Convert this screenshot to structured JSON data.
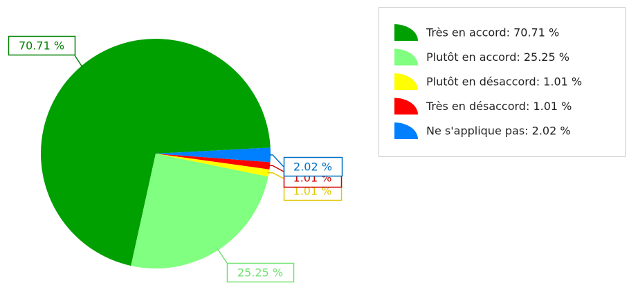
{
  "chart_data": {
    "type": "pie",
    "categories": [
      "Très en accord",
      "Plutôt en accord",
      "Plutôt en désaccord",
      "Très en désaccord",
      "Ne s'applique pas"
    ],
    "values": [
      70.71,
      25.25,
      1.01,
      1.01,
      2.02
    ],
    "value_labels": [
      "70.71 %",
      "25.25 %",
      "1.01 %",
      "1.01 %",
      "2.02 %"
    ],
    "legend": [
      "Très en accord: 70.71 %",
      "Plutôt en accord: 25.25 %",
      "Plutôt en désaccord: 1.01 %",
      "Très en désaccord: 1.01 %",
      "Ne s'applique pas: 2.02 %"
    ],
    "colors": [
      "#00a000",
      "#80ff80",
      "#ffff00",
      "#ff0000",
      "#0080ff"
    ],
    "label_colors": [
      "#008000",
      "#6fe36f",
      "#e0c800",
      "#cc0000",
      "#0070c0"
    ],
    "legend_position": "upper right"
  }
}
